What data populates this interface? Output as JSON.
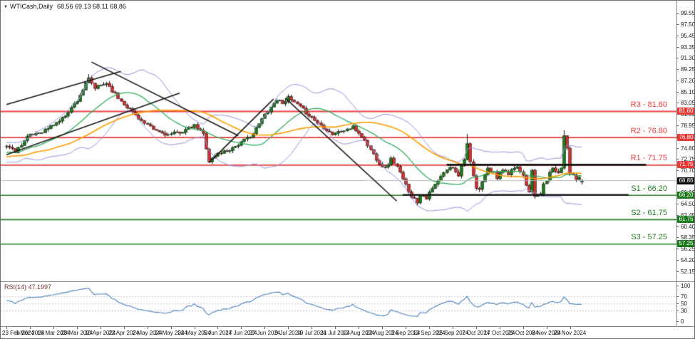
{
  "window": {
    "dropdown_icon": "▼",
    "title_symbol": "WTICash,Daily",
    "title_quotes": "68.56 69.13 68.11 68.86"
  },
  "colors": {
    "bull": "#1b7e1b",
    "bear": "#d43030",
    "wick": "#1a1a1a",
    "bollinger": "#9090d8",
    "ma_fast": "#2fae57",
    "ma_slow": "#ff9b00",
    "resistance": "#f23b3b",
    "support": "#227d22",
    "price_line": "#b9b9b9",
    "badge_resistance": "#e53935",
    "badge_support": "#1b7a1b",
    "badge_price": "#0d0d0d",
    "trendline": "#161616",
    "rsi_line": "#4a7ebb",
    "rsi_grid": "#c9c9c9",
    "axis_text": "#161616"
  },
  "chart_data": {
    "type": "candlestick",
    "symbol": "WTICash",
    "timeframe": "Daily",
    "title": "WTICash,Daily",
    "ohlc_quote": {
      "open": 68.56,
      "high": 69.13,
      "low": 68.11,
      "close": 68.86
    },
    "current_price": 68.86,
    "bars_count": 197,
    "close_waypoints": [
      [
        -50,
        73.0
      ],
      [
        -45,
        69.5
      ],
      [
        -40,
        74.0
      ],
      [
        -36,
        70.0
      ],
      [
        -32,
        75.0
      ],
      [
        -28,
        71.0
      ],
      [
        -25,
        74.5
      ],
      [
        -21,
        71.5
      ],
      [
        -18,
        74.8
      ],
      [
        -14,
        72.0
      ],
      [
        -10,
        75.0
      ],
      [
        -7,
        73.0
      ],
      [
        -5,
        74.5
      ],
      [
        -2,
        74.8
      ],
      [
        0,
        75.3
      ],
      [
        3,
        74.2
      ],
      [
        7,
        76.9
      ],
      [
        13,
        78.1
      ],
      [
        19,
        80.2
      ],
      [
        24,
        83.6
      ],
      [
        28,
        87.5
      ],
      [
        30,
        85.8
      ],
      [
        34,
        86.8
      ],
      [
        38,
        84.0
      ],
      [
        42,
        81.9
      ],
      [
        47,
        79.3
      ],
      [
        50,
        78.2
      ],
      [
        55,
        77.2
      ],
      [
        60,
        77.9
      ],
      [
        64,
        78.9
      ],
      [
        67,
        77.4
      ],
      [
        69,
        72.4
      ],
      [
        72,
        73.8
      ],
      [
        76,
        74.6
      ],
      [
        80,
        75.8
      ],
      [
        84,
        77.5
      ],
      [
        88,
        81.0
      ],
      [
        92,
        83.7
      ],
      [
        94,
        83.2
      ],
      [
        96,
        84.0
      ],
      [
        100,
        82.3
      ],
      [
        104,
        80.4
      ],
      [
        107,
        79.0
      ],
      [
        111,
        77.4
      ],
      [
        114,
        77.9
      ],
      [
        118,
        78.6
      ],
      [
        121,
        77.0
      ],
      [
        124,
        74.5
      ],
      [
        127,
        72.0
      ],
      [
        129,
        71.1
      ],
      [
        131,
        72.8
      ],
      [
        133,
        71.4
      ],
      [
        135,
        69.0
      ],
      [
        138,
        66.0
      ],
      [
        140,
        64.9
      ],
      [
        141,
        66.4
      ],
      [
        143,
        65.7
      ],
      [
        145,
        67.3
      ],
      [
        148,
        69.5
      ],
      [
        150,
        70.9
      ],
      [
        152,
        71.3
      ],
      [
        154,
        69.9
      ],
      [
        156,
        73.0
      ],
      [
        157,
        75.6
      ],
      [
        158,
        72.0
      ],
      [
        159,
        69.5
      ],
      [
        160,
        67.4
      ],
      [
        161,
        67.0
      ],
      [
        162,
        68.9
      ],
      [
        164,
        71.0
      ],
      [
        166,
        70.2
      ],
      [
        167,
        69.4
      ],
      [
        169,
        70.8
      ],
      [
        171,
        69.6
      ],
      [
        172,
        70.9
      ],
      [
        174,
        71.4
      ],
      [
        176,
        70.0
      ],
      [
        177,
        68.2
      ],
      [
        178,
        67.0
      ],
      [
        179,
        70.5
      ],
      [
        180,
        65.9
      ],
      [
        181,
        66.3
      ],
      [
        182,
        66.6
      ],
      [
        183,
        68.0
      ],
      [
        185,
        70.2
      ],
      [
        186,
        71.3
      ],
      [
        188,
        70.3
      ],
      [
        189,
        71.2
      ],
      [
        190,
        77.3
      ],
      [
        191,
        74.9
      ],
      [
        192,
        70.3
      ],
      [
        194,
        69.0
      ],
      [
        195,
        69.5
      ],
      [
        196,
        68.86
      ]
    ],
    "wick_overrides": {
      "high": [
        [
          28,
          88.4
        ],
        [
          157,
          77.4
        ],
        [
          190,
          78.1
        ]
      ],
      "low": [
        [
          140,
          64.2
        ],
        [
          180,
          65.5
        ]
      ]
    },
    "levels": [
      {
        "name": "R3",
        "label": "R3 - 81.60",
        "price": 81.6,
        "type": "resistance"
      },
      {
        "name": "R2",
        "label": "R2 - 76.80",
        "price": 76.8,
        "type": "resistance"
      },
      {
        "name": "R1",
        "label": "R1 - 71.75",
        "price": 71.75,
        "type": "resistance"
      },
      {
        "name": "S1",
        "label": "S1 - 66.20",
        "price": 66.2,
        "type": "support"
      },
      {
        "name": "S2",
        "label": "S2 - 61.75",
        "price": 61.75,
        "type": "support"
      },
      {
        "name": "S3",
        "label": "S3 - 57.25",
        "price": 57.25,
        "type": "support"
      }
    ],
    "trendlines": [
      {
        "from": [
          0,
          73.6
        ],
        "to": [
          59,
          84.9
        ]
      },
      {
        "from": [
          0,
          82.8
        ],
        "to": [
          39,
          88.9
        ]
      },
      {
        "from": [
          29,
          90.6
        ],
        "to": [
          79,
          77.1
        ]
      },
      {
        "from": [
          69,
          72.1
        ],
        "to": [
          91,
          83.8
        ]
      },
      {
        "from": [
          95,
          84.0
        ],
        "to": [
          133,
          65.1
        ]
      }
    ],
    "black_segments": [
      {
        "from": [
          150,
          71.75
        ],
        "to": [
          218,
          71.75
        ]
      },
      {
        "from": [
          135,
          66.2
        ],
        "to": [
          212,
          66.2
        ]
      }
    ],
    "indicators": {
      "bollinger": {
        "period": 20,
        "deviation": 2
      },
      "ma_fast": {
        "period": 20
      },
      "ma_slow": {
        "period": 45
      },
      "rsi": {
        "period": 14,
        "label": "RSI(14) 47.1997",
        "value": 47.1997,
        "grid_levels": [
          70,
          50,
          30
        ]
      }
    },
    "price_axis_ticks": [
      99.55,
      97.5,
      95.45,
      93.35,
      91.3,
      89.25,
      87.2,
      85.1,
      83.05,
      81.0,
      78.95,
      76.9,
      74.8,
      72.75,
      70.7,
      68.65,
      66.6,
      64.5,
      62.45,
      60.4,
      58.35,
      56.25,
      54.2,
      52.15
    ],
    "axis_badges": [
      {
        "value": "81.60",
        "price": 81.6,
        "type": "resistance"
      },
      {
        "value": "76.80",
        "price": 76.8,
        "type": "resistance"
      },
      {
        "value": "71.75",
        "price": 71.75,
        "type": "resistance"
      },
      {
        "value": "68.86",
        "price": 68.86,
        "type": "price"
      },
      {
        "value": "66.20",
        "price": 66.2,
        "type": "support"
      },
      {
        "value": "61.75",
        "price": 61.75,
        "type": "support"
      },
      {
        "value": "57.25",
        "price": 57.25,
        "type": "support"
      }
    ],
    "rsi_axis_ticks": [
      100,
      70,
      50,
      30,
      0
    ],
    "date_label_step_bars": 8,
    "date_labels": [
      "23 Feb 2024",
      "6 Mar 2024",
      "18 Mar 2024",
      "28 Mar 2024",
      "10 Apr 2024",
      "22 Apr 2024",
      "2 May 2024",
      "14 May 2024",
      "24 May 2024",
      "5 Jun 2024",
      "17 Jun 2024",
      "27 Jun 2024",
      "9 Jul 2024",
      "19 Jul 2024",
      "31 Jul 2024",
      "12 Aug 2024",
      "22 Aug 2024",
      "3 Sep 2024",
      "13 Sep 2024",
      "25 Sep 2024",
      "7 Oct 2024",
      "17 Oct 2024",
      "29 Oct 2024",
      "8 Nov 2024",
      "20 Nov 2024"
    ]
  }
}
